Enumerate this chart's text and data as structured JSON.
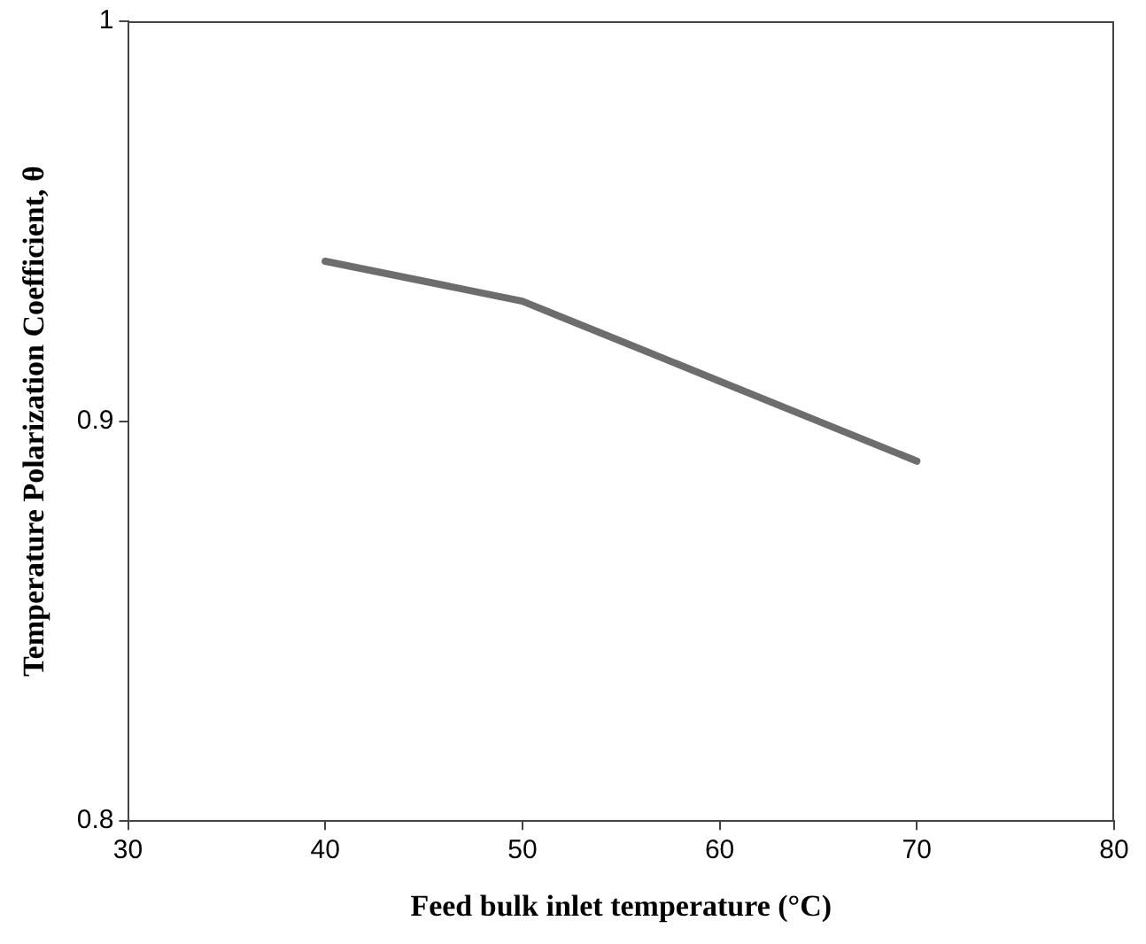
{
  "chart_data": {
    "type": "line",
    "xlabel": "Feed bulk inlet temperature (°C)",
    "ylabel": "Temperature Polarization Coefficient, θ",
    "x": [
      40,
      45,
      50,
      52,
      55,
      60,
      65,
      70
    ],
    "series": [
      {
        "color": "#6d6d6d",
        "values": [
          0.94,
          0.935,
          0.93,
          0.926,
          0.92,
          0.91,
          0.9,
          0.89
        ]
      }
    ],
    "xlim": [
      30,
      80
    ],
    "xticks": [
      30,
      40,
      50,
      60,
      70,
      80
    ],
    "ylim": [
      0.8,
      1
    ],
    "yticks": [
      0.8,
      0.9,
      1
    ],
    "grid": false,
    "legend": false,
    "marker": "none",
    "line_style": "solid"
  }
}
